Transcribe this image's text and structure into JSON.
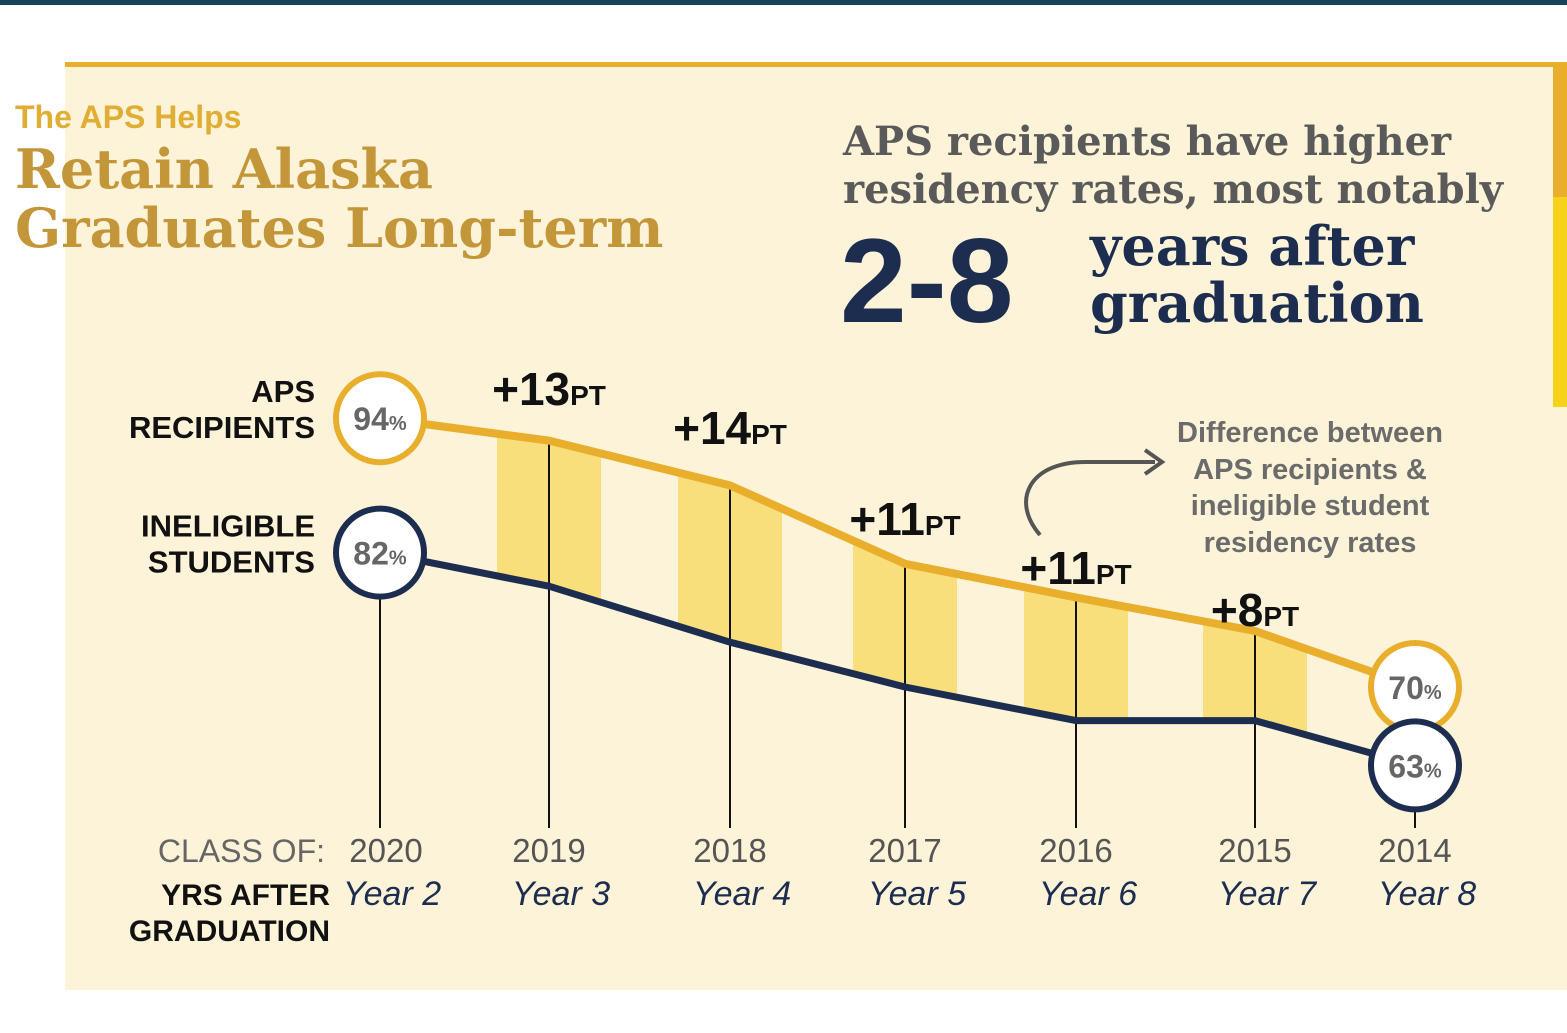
{
  "chart_data": {
    "type": "line",
    "kicker": "The APS Helps",
    "title_lines": [
      "Retain Alaska",
      "Graduates Long-term"
    ],
    "headline_lines": [
      "APS recipients have higher",
      "residency rates, most notably"
    ],
    "headline_big": "2-8",
    "headline_rest": [
      "years after",
      "graduation"
    ],
    "annotation_lines": [
      "Difference between",
      "APS recipients &",
      "ineligible student",
      "residency rates"
    ],
    "x_header": "CLASS OF:",
    "x2_header": "YRS AFTER GRADUATION",
    "categories": [
      "2020",
      "2019",
      "2018",
      "2017",
      "2016",
      "2015",
      "2014"
    ],
    "categories_2": [
      "Year 2",
      "Year 3",
      "Year 4",
      "Year 5",
      "Year 6",
      "Year 7",
      "Year 8"
    ],
    "ylim": [
      60,
      100
    ],
    "value_unit": "%",
    "series": [
      {
        "name": "APS RECIPIENTS",
        "color": "#e8ae2c",
        "values": [
          94,
          92,
          88,
          81,
          78,
          75,
          70
        ]
      },
      {
        "name": "INELIGIBLE STUDENTS",
        "color": "#1d2d50",
        "values": [
          82,
          79,
          74,
          70,
          67,
          67,
          63
        ]
      }
    ],
    "band_color": "#f8df7c",
    "differences": {
      "unit": "PT",
      "values": [
        13,
        14,
        11,
        11,
        8
      ],
      "value_labels": [
        "+13",
        "+14",
        "+11",
        "+11",
        "+8"
      ]
    }
  }
}
